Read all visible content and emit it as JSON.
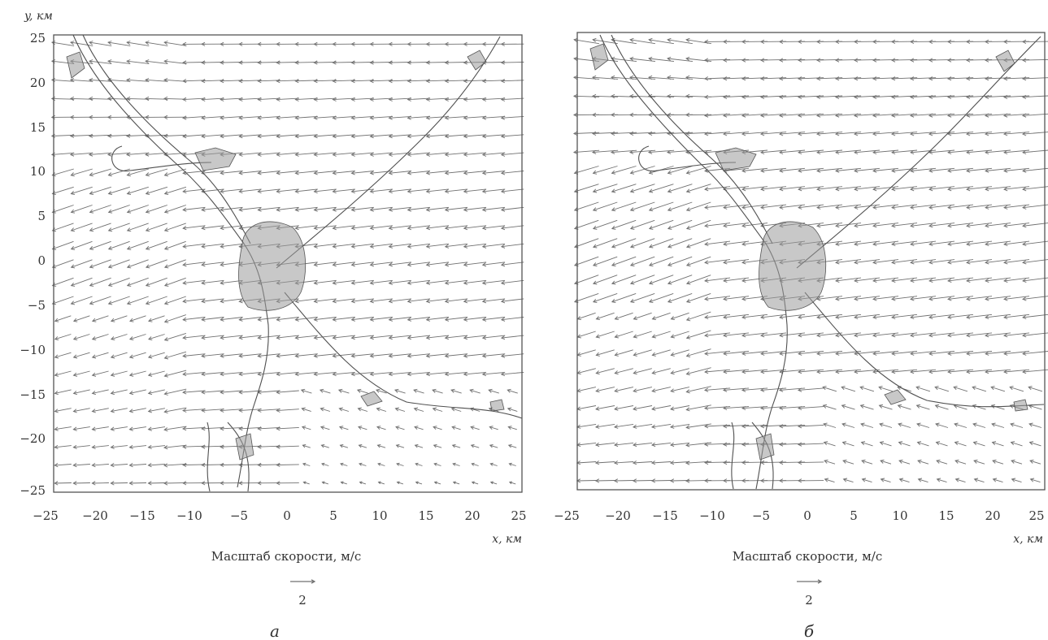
{
  "chart_data": [
    {
      "type": "vector-field",
      "panel": "a",
      "xlabel": "x, км",
      "ylabel": "y, км",
      "xlim": [
        -25,
        25
      ],
      "ylim": [
        -25,
        25
      ],
      "x_ticks": [
        "−25",
        "−20",
        "−15",
        "−10",
        "−5",
        "0",
        "5",
        "10",
        "15",
        "20",
        "25"
      ],
      "y_ticks": [
        "25",
        "20",
        "15",
        "10",
        "5",
        "0",
        "−5",
        "−10",
        "−15",
        "−20",
        "−25"
      ],
      "scale_caption": "Масштаб скорости, м/с",
      "scale_value": "2",
      "scale_speed": 2,
      "field": {
        "grid_step_km": 2,
        "prevailing_direction": "from east to west",
        "typical_speed_ms": 2.3,
        "calm_zone_speed_ms": 0.6
      },
      "letter": "а"
    },
    {
      "type": "vector-field",
      "panel": "б",
      "xlabel": "x, км",
      "ylabel": "",
      "xlim": [
        -25,
        25
      ],
      "ylim": [
        -25,
        25
      ],
      "x_ticks": [
        "−25",
        "−20",
        "−15",
        "−10",
        "−5",
        "0",
        "5",
        "10",
        "15",
        "20",
        "25"
      ],
      "y_ticks": [],
      "scale_caption": "Масштаб скорости, м/с",
      "scale_value": "2",
      "scale_speed": 2,
      "field": {
        "grid_step_km": 2,
        "prevailing_direction": "from east to west",
        "typical_speed_ms": 2.6,
        "calm_zone_speed_ms": 1.0
      },
      "letter": "б"
    }
  ],
  "colors": {
    "arrow": "#707070",
    "river": "#505050",
    "urban": "#666666",
    "frame": "#555555"
  }
}
